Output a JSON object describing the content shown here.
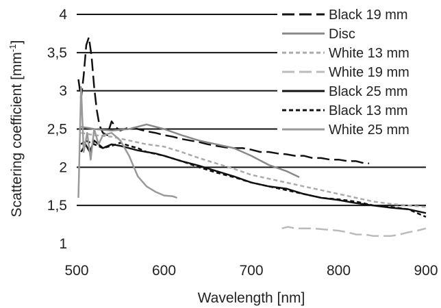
{
  "chart_data": {
    "type": "line",
    "xlabel": "Wavelength [nm]",
    "ylabel": "Scattering coefficient [mm",
    "ylabel_sup": "-1",
    "ylabel_close": "]",
    "xlim": [
      500,
      900
    ],
    "ylim": [
      1,
      4
    ],
    "xticks": [
      "500",
      "600",
      "700",
      "800",
      "900"
    ],
    "yticks": [
      "1",
      "1,5",
      "2",
      "2,5",
      "3",
      "3,5",
      "4"
    ],
    "grid": "horizontal",
    "legend_position": "top-right",
    "series": [
      {
        "name": "Black 19 mm",
        "color": "#111111",
        "dash": "long-dash",
        "x": [
          502,
          505,
          508,
          511,
          514,
          517,
          520,
          523,
          526,
          530,
          535,
          540,
          545,
          550,
          555,
          560,
          570,
          580,
          590,
          600,
          610,
          620,
          630,
          640,
          650,
          660,
          670,
          680,
          690,
          700,
          710,
          720,
          730,
          740,
          750,
          760,
          770,
          780,
          790,
          800,
          810,
          820,
          830,
          835
        ],
        "y": [
          3.15,
          2.9,
          3.2,
          3.6,
          3.7,
          3.45,
          3.05,
          2.75,
          2.55,
          2.45,
          2.42,
          2.6,
          2.52,
          2.48,
          2.5,
          2.52,
          2.5,
          2.47,
          2.45,
          2.42,
          2.4,
          2.37,
          2.35,
          2.33,
          2.3,
          2.28,
          2.26,
          2.25,
          2.25,
          2.23,
          2.2,
          2.2,
          2.18,
          2.17,
          2.15,
          2.15,
          2.12,
          2.12,
          2.1,
          2.1,
          2.08,
          2.08,
          2.05,
          2.05
        ]
      },
      {
        "name": "Disc",
        "color": "#888888",
        "dash": "solid",
        "x": [
          505,
          520,
          540,
          560,
          580,
          600,
          620,
          640,
          660,
          680,
          700,
          720,
          740,
          755
        ],
        "y": [
          2.53,
          2.5,
          2.48,
          2.5,
          2.56,
          2.5,
          2.42,
          2.35,
          2.3,
          2.25,
          2.15,
          2.03,
          1.95,
          1.87
        ]
      },
      {
        "name": "White 13 mm",
        "color": "#aaaaaa",
        "dash": "short-dash",
        "x": [
          505,
          520,
          540,
          560,
          580,
          600,
          620,
          640,
          660,
          680,
          700,
          720,
          740,
          760,
          780,
          800,
          820,
          840,
          860,
          880,
          900
        ],
        "y": [
          2.45,
          2.42,
          2.4,
          2.35,
          2.3,
          2.27,
          2.2,
          2.12,
          2.05,
          1.98,
          1.9,
          1.85,
          1.8,
          1.75,
          1.7,
          1.65,
          1.6,
          1.55,
          1.52,
          1.5,
          1.48
        ]
      },
      {
        "name": "White 19 mm",
        "color": "#bbbbbb",
        "dash": "long-dash",
        "x": [
          735,
          742,
          750,
          757,
          763,
          770,
          790,
          800,
          810,
          820,
          830,
          840,
          850,
          860,
          870,
          880,
          890,
          900
        ],
        "y": [
          1.2,
          1.22,
          1.2,
          1.2,
          1.2,
          1.2,
          1.18,
          1.17,
          1.15,
          1.12,
          1.12,
          1.1,
          1.1,
          1.1,
          1.12,
          1.15,
          1.17,
          1.2
        ]
      },
      {
        "name": "Black 25 mm",
        "color": "#111111",
        "dash": "solid",
        "x": [
          505,
          510,
          515,
          520,
          530,
          540,
          550,
          560,
          570,
          580,
          590,
          600,
          620,
          640,
          660,
          680,
          700,
          720,
          740,
          760,
          780,
          800,
          820,
          840,
          860,
          880,
          900
        ],
        "y": [
          2.2,
          2.3,
          2.2,
          2.35,
          2.25,
          2.3,
          2.28,
          2.25,
          2.22,
          2.2,
          2.18,
          2.15,
          2.08,
          2.02,
          1.95,
          1.88,
          1.8,
          1.75,
          1.72,
          1.65,
          1.6,
          1.57,
          1.53,
          1.5,
          1.47,
          1.45,
          1.4
        ]
      },
      {
        "name": "Black 13 mm",
        "color": "#111111",
        "dash": "short-dash",
        "x": [
          505,
          510,
          520,
          530,
          540,
          550,
          560,
          570,
          580,
          600,
          620,
          640,
          660,
          680,
          700,
          720,
          740,
          760,
          780,
          800,
          820,
          840,
          860,
          880,
          900
        ],
        "y": [
          2.3,
          2.35,
          2.3,
          2.25,
          2.28,
          2.32,
          2.28,
          2.25,
          2.2,
          2.15,
          2.08,
          2.0,
          1.93,
          1.87,
          1.8,
          1.75,
          1.7,
          1.65,
          1.6,
          1.58,
          1.55,
          1.5,
          1.48,
          1.45,
          1.35
        ]
      },
      {
        "name": "White 25 mm",
        "color": "#999999",
        "dash": "solid",
        "x": [
          502,
          505,
          508,
          512,
          516,
          520,
          525,
          530,
          540,
          550,
          560,
          570,
          580,
          590,
          600,
          610,
          615
        ],
        "y": [
          1.6,
          3.05,
          2.2,
          2.45,
          2.1,
          2.5,
          2.3,
          2.42,
          2.45,
          2.35,
          2.15,
          1.88,
          1.75,
          1.68,
          1.63,
          1.62,
          1.6
        ]
      }
    ]
  }
}
